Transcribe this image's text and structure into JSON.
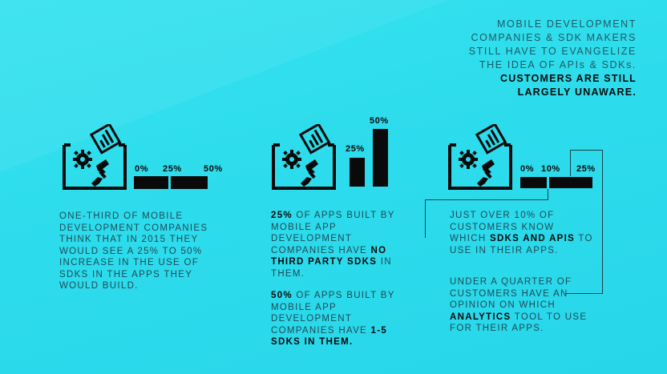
{
  "headline": {
    "line1": "MOBILE DEVELOPMENT",
    "line2": "COMPANIES & SDK MAKERS",
    "line3": "STILL HAVE TO EVANGELIZE",
    "line4": "THE IDEA OF APIs & SDKs.",
    "bold1": "CUSTOMERS ARE STILL",
    "bold2": "LARGELY UNAWARE."
  },
  "section1": {
    "ticks": [
      "0%",
      "25%",
      "50%"
    ],
    "value_percent": 25,
    "text": [
      "ONE-THIRD OF MOBILE",
      "DEVELOPMENT COMPANIES",
      "THINK THAT IN 2015 THEY",
      "WOULD SEE A 25% TO 50%",
      "INCREASE IN THE USE OF",
      "SDKs IN THE APPS THEY",
      "WOULD BUILD."
    ]
  },
  "section2": {
    "bar_labels": [
      "25%",
      "50%"
    ],
    "bar_values": [
      25,
      50
    ],
    "p1": {
      "pct": "25%",
      "t1": " OF APPS BUILT BY",
      "t2": "MOBILE APP",
      "t3": "DEVELOPMENT",
      "t4": "COMPANIES HAVE ",
      "b1": "NO",
      "b2": "THIRD PARTY SDKs",
      "t5": " IN",
      "t6": "THEM."
    },
    "p2": {
      "pct": "50%",
      "t1": " OF APPS BUILT BY",
      "t2": "MOBILE APP",
      "t3": "DEVELOPMENT",
      "t4": "COMPANIES HAVE ",
      "b1": "1-5",
      "b2": "SDKs IN THEM."
    }
  },
  "section3": {
    "ticks": [
      "0%",
      "10%",
      "25%"
    ],
    "values_percent": [
      10,
      25
    ],
    "p1": {
      "t1": "JUST OVER 10% OF",
      "t2": "CUSTOMERS KNOW",
      "t3": "WHICH ",
      "b1": "SDKs AND APIs",
      "t4": " TO",
      "t5": "USE IN THEIR APPS."
    },
    "p2": {
      "t1": "UNDER A QUARTER OF",
      "t2": "CUSTOMERS HAVE AN",
      "t3": "OPINION ON WHICH",
      "b1": "ANALYTICS",
      "t4": " TOOL TO USE",
      "t5": "FOR THEIR APPS."
    }
  },
  "colors": {
    "background": "#2ddcec",
    "ink": "#0a0a0a",
    "body_text": "#1f4a55"
  }
}
